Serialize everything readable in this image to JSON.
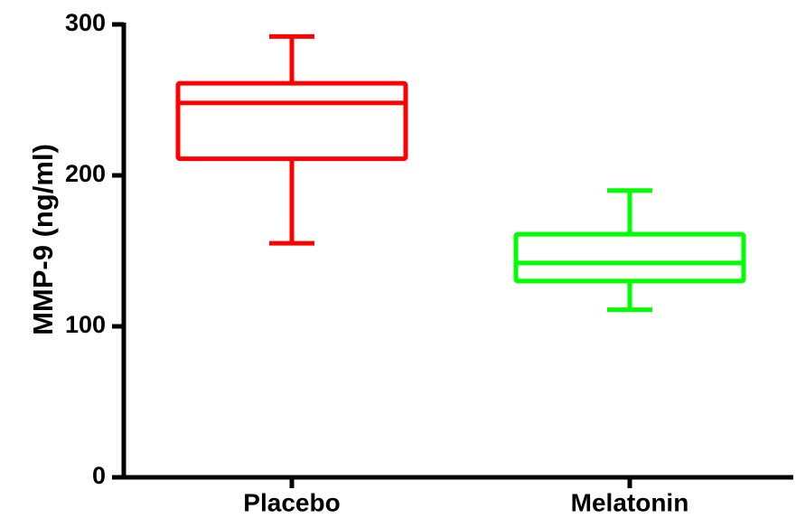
{
  "chart_data": {
    "type": "box",
    "ylabel": "MMP-9 (ng/ml)",
    "xlabel": "",
    "ylim": [
      0,
      300
    ],
    "yticks": [
      0,
      100,
      200,
      300
    ],
    "categories": [
      "Placebo",
      "Melatonin"
    ],
    "boxes": [
      {
        "category": "Placebo",
        "min": 155,
        "q1": 211,
        "median": 248,
        "q3": 261,
        "max": 292,
        "color": "#ff0000"
      },
      {
        "category": "Melatonin",
        "min": 111,
        "q1": 130,
        "median": 142,
        "q3": 161,
        "max": 190,
        "color": "#00ff00"
      }
    ],
    "grid": false
  }
}
